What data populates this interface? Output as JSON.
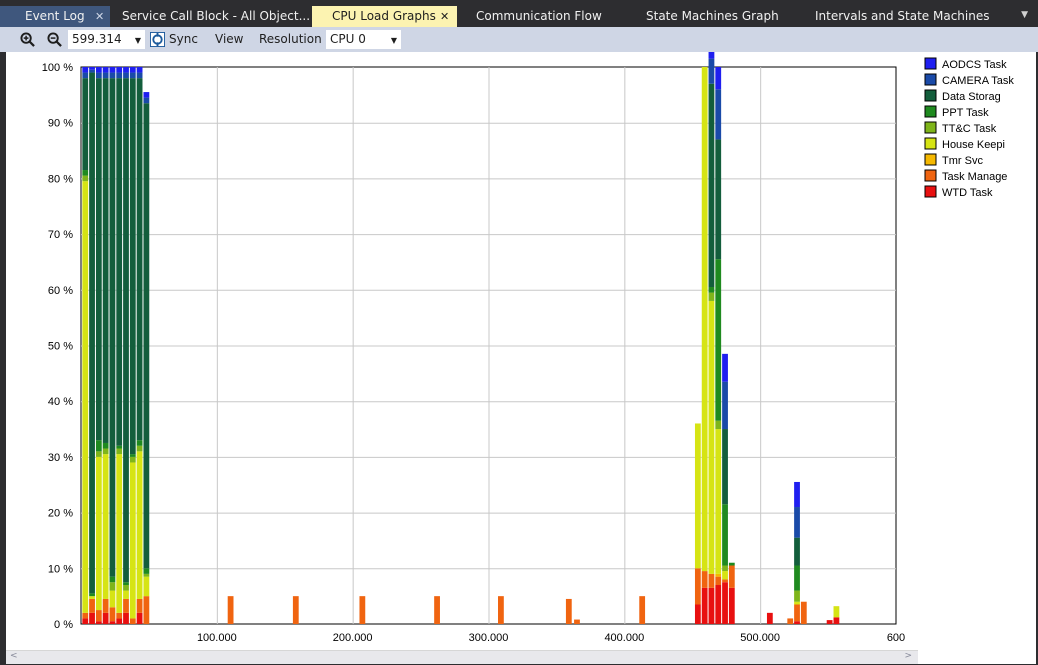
{
  "tabs": [
    {
      "label": "Event Log",
      "close": "✕"
    },
    {
      "label": "Service Call Block - All Object..."
    },
    {
      "label": "CPU Load Graphs",
      "close": "✕"
    },
    {
      "label": "Communication Flow"
    },
    {
      "label": "State Machines Graph"
    },
    {
      "label": "Intervals and State Machines"
    }
  ],
  "tab_dropdown_icon": "chevron-down-icon",
  "toolbar": {
    "zoom_in_icon": "zoom-in-icon",
    "zoom_out_icon": "zoom-out-icon",
    "zoom_value": "599.314",
    "sync_icon": "sync-icon",
    "sync_label": "Sync",
    "view_label": "View",
    "resolution_label": "Resolution",
    "cpu_value": "CPU 0"
  },
  "colors": {
    "AODCS Task": "#1f1ff0",
    "CAMERA Task": "#1a4aa8",
    "Data Storag": "#135e3c",
    "PPT Task": "#1f8a1f",
    "TT&C Task": "#7fb51a",
    "House Keepi": "#d6e414",
    "Tmr Svc": "#f5b800",
    "Task Manage": "#f06410",
    "WTD Task": "#e81010"
  },
  "chart_data": {
    "type": "bar",
    "stacked": true,
    "xlim": [
      0,
      600
    ],
    "ylim": [
      0,
      100
    ],
    "xticks": [
      {
        "v": 100,
        "label": "100.000"
      },
      {
        "v": 200,
        "label": "200.000"
      },
      {
        "v": 300,
        "label": "300.000"
      },
      {
        "v": 400,
        "label": "400.000"
      },
      {
        "v": 500,
        "label": "500.000"
      },
      {
        "v": 600,
        "label": "600"
      }
    ],
    "yticks": [
      {
        "v": 0,
        "label": "0 %"
      },
      {
        "v": 10,
        "label": "10 %"
      },
      {
        "v": 20,
        "label": "20 %"
      },
      {
        "v": 30,
        "label": "30 %"
      },
      {
        "v": 40,
        "label": "40 %"
      },
      {
        "v": 50,
        "label": "50 %"
      },
      {
        "v": 60,
        "label": "60 %"
      },
      {
        "v": 70,
        "label": "70 %"
      },
      {
        "v": 80,
        "label": "80 %"
      },
      {
        "v": 90,
        "label": "90 %"
      },
      {
        "v": 100,
        "label": "100 %"
      }
    ],
    "grid": true,
    "legend_position": "right",
    "series_order": [
      "WTD Task",
      "Task Manage",
      "Tmr Svc",
      "House Keepi",
      "TT&C Task",
      "PPT Task",
      "Data Storag",
      "CAMERA Task",
      "AODCS Task"
    ],
    "legend": [
      "AODCS Task",
      "CAMERA Task",
      "Data Storag",
      "PPT Task",
      "TT&C Task",
      "House Keepi",
      "Tmr Svc",
      "Task Manage",
      "WTD Task"
    ],
    "bars": [
      {
        "x": 1,
        "w": 5,
        "values": {
          "WTD Task": 1,
          "Task Manage": 1,
          "House Keepi": 77.5,
          "TT&C Task": 1,
          "PPT Task": 1,
          "Data Storag": 16.5,
          "CAMERA Task": 1,
          "AODCS Task": 1
        }
      },
      {
        "x": 6,
        "w": 5,
        "values": {
          "WTD Task": 2,
          "Task Manage": 2.5,
          "House Keepi": 0.5,
          "PPT Task": 0.5,
          "Data Storag": 93.5,
          "CAMERA Task": 0.5,
          "AODCS Task": 0.5
        }
      },
      {
        "x": 11,
        "w": 5,
        "values": {
          "WTD Task": 0.5,
          "Task Manage": 2,
          "House Keepi": 27.5,
          "TT&C Task": 1,
          "PPT Task": 2,
          "Data Storag": 65,
          "CAMERA Task": 1,
          "AODCS Task": 1
        }
      },
      {
        "x": 16,
        "w": 5,
        "values": {
          "WTD Task": 2,
          "Task Manage": 2.5,
          "House Keepi": 26,
          "TT&C Task": 1,
          "PPT Task": 1,
          "Data Storag": 65.5,
          "CAMERA Task": 1,
          "AODCS Task": 1
        }
      },
      {
        "x": 21,
        "w": 5,
        "values": {
          "WTD Task": 0.5,
          "Task Manage": 2.5,
          "House Keepi": 3,
          "TT&C Task": 1.5,
          "PPT Task": 1,
          "Data Storag": 89.5,
          "CAMERA Task": 1,
          "AODCS Task": 1
        }
      },
      {
        "x": 26,
        "w": 5,
        "values": {
          "WTD Task": 1,
          "Task Manage": 1,
          "House Keepi": 28.5,
          "TT&C Task": 1,
          "PPT Task": 0.5,
          "Data Storag": 66,
          "CAMERA Task": 1,
          "AODCS Task": 1
        }
      },
      {
        "x": 31,
        "w": 5,
        "values": {
          "WTD Task": 2,
          "Task Manage": 2.5,
          "House Keepi": 1.5,
          "TT&C Task": 1,
          "PPT Task": 0.5,
          "Data Storag": 90.5,
          "CAMERA Task": 1,
          "AODCS Task": 1
        }
      },
      {
        "x": 36,
        "w": 5,
        "values": {
          "Task Manage": 1,
          "House Keepi": 28,
          "TT&C Task": 1,
          "PPT Task": 0.5,
          "Data Storag": 67.5,
          "CAMERA Task": 1,
          "AODCS Task": 1
        }
      },
      {
        "x": 41,
        "w": 5,
        "values": {
          "WTD Task": 2,
          "Task Manage": 2.5,
          "House Keepi": 26.5,
          "TT&C Task": 1,
          "PPT Task": 1,
          "Data Storag": 65,
          "CAMERA Task": 1,
          "AODCS Task": 1
        }
      },
      {
        "x": 46,
        "w": 5,
        "values": {
          "Task Manage": 5,
          "House Keepi": 3.5,
          "TT&C Task": 0.5,
          "PPT Task": 1,
          "Data Storag": 83.5,
          "CAMERA Task": 1,
          "AODCS Task": 1
        }
      },
      {
        "x": 108,
        "w": 5,
        "values": {
          "Task Manage": 5
        }
      },
      {
        "x": 156,
        "w": 5,
        "values": {
          "Task Manage": 5
        }
      },
      {
        "x": 205,
        "w": 5,
        "values": {
          "Task Manage": 5
        }
      },
      {
        "x": 260,
        "w": 5,
        "values": {
          "Task Manage": 5
        }
      },
      {
        "x": 307,
        "w": 5,
        "values": {
          "Task Manage": 5
        }
      },
      {
        "x": 357,
        "w": 5,
        "values": {
          "Task Manage": 4.5
        }
      },
      {
        "x": 363,
        "w": 5,
        "values": {
          "Task Manage": 0.8
        }
      },
      {
        "x": 411,
        "w": 5,
        "values": {
          "Task Manage": 5
        }
      },
      {
        "x": 452,
        "w": 5,
        "values": {
          "WTD Task": 3.5,
          "Task Manage": 6.5,
          "House Keepi": 26
        }
      },
      {
        "x": 457,
        "w": 5,
        "values": {
          "WTD Task": 6.5,
          "Task Manage": 3,
          "House Keepi": 90.5
        }
      },
      {
        "x": 462,
        "w": 5,
        "values": {
          "WTD Task": 6.5,
          "Task Manage": 2.5,
          "House Keepi": 49,
          "TT&C Task": 1.5,
          "PPT Task": 1,
          "Data Storag": 36.5,
          "CAMERA Task": 4.5,
          "AODCS Task": 2.5
        }
      },
      {
        "x": 467,
        "w": 5,
        "values": {
          "WTD Task": 7,
          "Task Manage": 1.5,
          "Tmr Svc": 0.5,
          "House Keepi": 26,
          "TT&C Task": 1.5,
          "PPT Task": 29,
          "Data Storag": 21.5,
          "CAMERA Task": 9,
          "AODCS Task": 4
        }
      },
      {
        "x": 472,
        "w": 5,
        "values": {
          "WTD Task": 7.5,
          "Task Manage": 0.5,
          "House Keepi": 1.5,
          "TT&C Task": 1,
          "PPT Task": 11,
          "Data Storag": 13.5,
          "CAMERA Task": 8.5,
          "AODCS Task": 5
        }
      },
      {
        "x": 477,
        "w": 5,
        "values": {
          "WTD Task": 6.5,
          "Task Manage": 4,
          "PPT Task": 0.5
        }
      },
      {
        "x": 505,
        "w": 5,
        "values": {
          "WTD Task": 2
        }
      },
      {
        "x": 520,
        "w": 5,
        "values": {
          "Task Manage": 1
        }
      },
      {
        "x": 525,
        "w": 5,
        "values": {
          "WTD Task": 0.5,
          "Task Manage": 3,
          "House Keepi": 0.5,
          "TT&C Task": 2,
          "PPT Task": 4.5,
          "Data Storag": 5,
          "CAMERA Task": 5.5,
          "AODCS Task": 4.5
        }
      },
      {
        "x": 530,
        "w": 5,
        "values": {
          "Task Manage": 4
        }
      },
      {
        "x": 549,
        "w": 5,
        "values": {
          "WTD Task": 0.7
        }
      },
      {
        "x": 554,
        "w": 5,
        "values": {
          "WTD Task": 1.2,
          "House Keepi": 2
        }
      }
    ]
  }
}
